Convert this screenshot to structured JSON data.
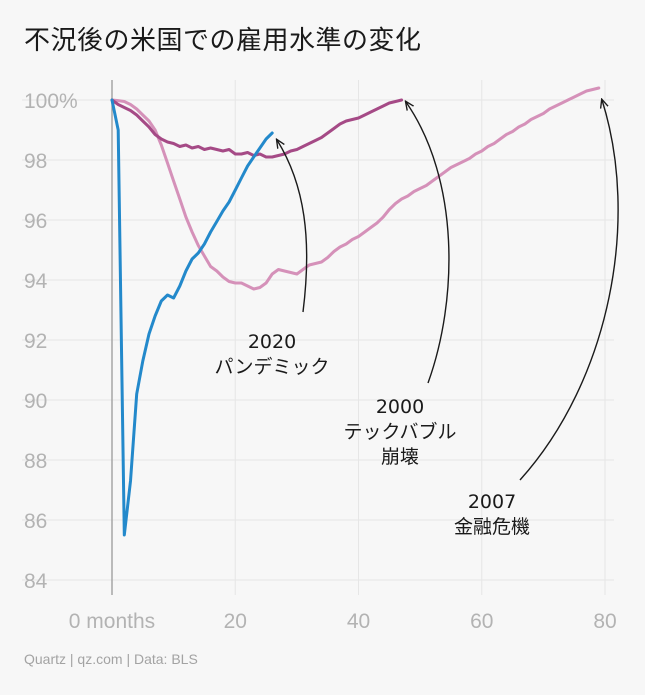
{
  "title": "不況後の米国での雇用水準の変化",
  "footer": "Quartz | qz.com | Data: BLS",
  "chart_data": {
    "type": "line",
    "title": "不況後の米国での雇用水準の変化",
    "xlabel": "",
    "ylabel": "",
    "xlim": [
      0,
      80
    ],
    "ylim": [
      84,
      100
    ],
    "x_ticks": [
      {
        "value": 0,
        "label": "0 months"
      },
      {
        "value": 20,
        "label": "20"
      },
      {
        "value": 40,
        "label": "40"
      },
      {
        "value": 60,
        "label": "60"
      },
      {
        "value": 80,
        "label": "80"
      }
    ],
    "y_ticks": [
      {
        "value": 100,
        "label": "100%"
      },
      {
        "value": 98,
        "label": "98"
      },
      {
        "value": 96,
        "label": "96"
      },
      {
        "value": 94,
        "label": "94"
      },
      {
        "value": 92,
        "label": "92"
      },
      {
        "value": 90,
        "label": "90"
      },
      {
        "value": 88,
        "label": "88"
      },
      {
        "value": 86,
        "label": "86"
      },
      {
        "value": 84,
        "label": "84"
      }
    ],
    "grid": true,
    "series": [
      {
        "name": "2007 金融危機",
        "color": "#d591b9",
        "x": [
          0,
          1,
          2,
          3,
          4,
          5,
          6,
          7,
          8,
          9,
          10,
          11,
          12,
          13,
          14,
          15,
          16,
          17,
          18,
          19,
          20,
          21,
          22,
          23,
          24,
          25,
          26,
          27,
          28,
          29,
          30,
          31,
          32,
          33,
          34,
          35,
          36,
          37,
          38,
          39,
          40,
          41,
          42,
          43,
          44,
          45,
          46,
          47,
          48,
          49,
          50,
          51,
          52,
          53,
          54,
          55,
          56,
          57,
          58,
          59,
          60,
          61,
          62,
          63,
          64,
          65,
          66,
          67,
          68,
          69,
          70,
          71,
          72,
          73,
          74,
          75,
          76,
          77,
          78,
          79
        ],
        "y": [
          100,
          99.98,
          99.95,
          99.85,
          99.7,
          99.5,
          99.3,
          99.0,
          98.5,
          97.9,
          97.3,
          96.7,
          96.1,
          95.6,
          95.15,
          94.8,
          94.45,
          94.3,
          94.1,
          93.95,
          93.9,
          93.9,
          93.8,
          93.7,
          93.75,
          93.9,
          94.2,
          94.35,
          94.3,
          94.25,
          94.2,
          94.35,
          94.5,
          94.55,
          94.6,
          94.75,
          94.95,
          95.1,
          95.2,
          95.35,
          95.45,
          95.6,
          95.75,
          95.9,
          96.1,
          96.35,
          96.55,
          96.7,
          96.8,
          96.95,
          97.05,
          97.15,
          97.3,
          97.45,
          97.6,
          97.75,
          97.85,
          97.95,
          98.05,
          98.2,
          98.3,
          98.45,
          98.55,
          98.7,
          98.85,
          98.95,
          99.1,
          99.2,
          99.35,
          99.45,
          99.55,
          99.7,
          99.8,
          99.9,
          100.0,
          100.1,
          100.2,
          100.3,
          100.35,
          100.4
        ]
      },
      {
        "name": "2000 テックバブル崩壊",
        "color": "#a54a86",
        "x": [
          0,
          1,
          2,
          3,
          4,
          5,
          6,
          7,
          8,
          9,
          10,
          11,
          12,
          13,
          14,
          15,
          16,
          17,
          18,
          19,
          20,
          21,
          22,
          23,
          24,
          25,
          26,
          27,
          28,
          29,
          30,
          31,
          32,
          33,
          34,
          35,
          36,
          37,
          38,
          39,
          40,
          41,
          42,
          43,
          44,
          45,
          46,
          47
        ],
        "y": [
          100,
          99.85,
          99.75,
          99.65,
          99.5,
          99.3,
          99.1,
          98.85,
          98.7,
          98.6,
          98.55,
          98.45,
          98.5,
          98.4,
          98.45,
          98.35,
          98.4,
          98.35,
          98.3,
          98.35,
          98.2,
          98.2,
          98.25,
          98.15,
          98.2,
          98.1,
          98.1,
          98.15,
          98.2,
          98.3,
          98.35,
          98.45,
          98.55,
          98.65,
          98.75,
          98.9,
          99.05,
          99.2,
          99.3,
          99.35,
          99.4,
          99.5,
          99.6,
          99.7,
          99.8,
          99.9,
          99.95,
          100.0
        ]
      },
      {
        "name": "2020 パンデミック",
        "color": "#2389cb",
        "x": [
          0,
          1,
          2,
          3,
          4,
          5,
          6,
          7,
          8,
          9,
          10,
          11,
          12,
          13,
          14,
          15,
          16,
          17,
          18,
          19,
          20,
          21,
          22,
          23,
          24,
          25,
          26
        ],
        "y": [
          100,
          99.0,
          85.5,
          87.3,
          90.2,
          91.3,
          92.2,
          92.8,
          93.3,
          93.5,
          93.4,
          93.8,
          94.3,
          94.7,
          94.9,
          95.2,
          95.6,
          95.95,
          96.3,
          96.6,
          97.0,
          97.4,
          97.8,
          98.1,
          98.4,
          98.7,
          98.9
        ]
      }
    ],
    "annotations": [
      {
        "lines": [
          "2020",
          "パンデミック"
        ],
        "target_series": "2020 パンデミック"
      },
      {
        "lines": [
          "2000",
          "テックバブル",
          "崩壊"
        ],
        "target_series": "2000 テックバブル崩壊"
      },
      {
        "lines": [
          "2007",
          "金融危機"
        ],
        "target_series": "2007 金融危機"
      }
    ]
  }
}
